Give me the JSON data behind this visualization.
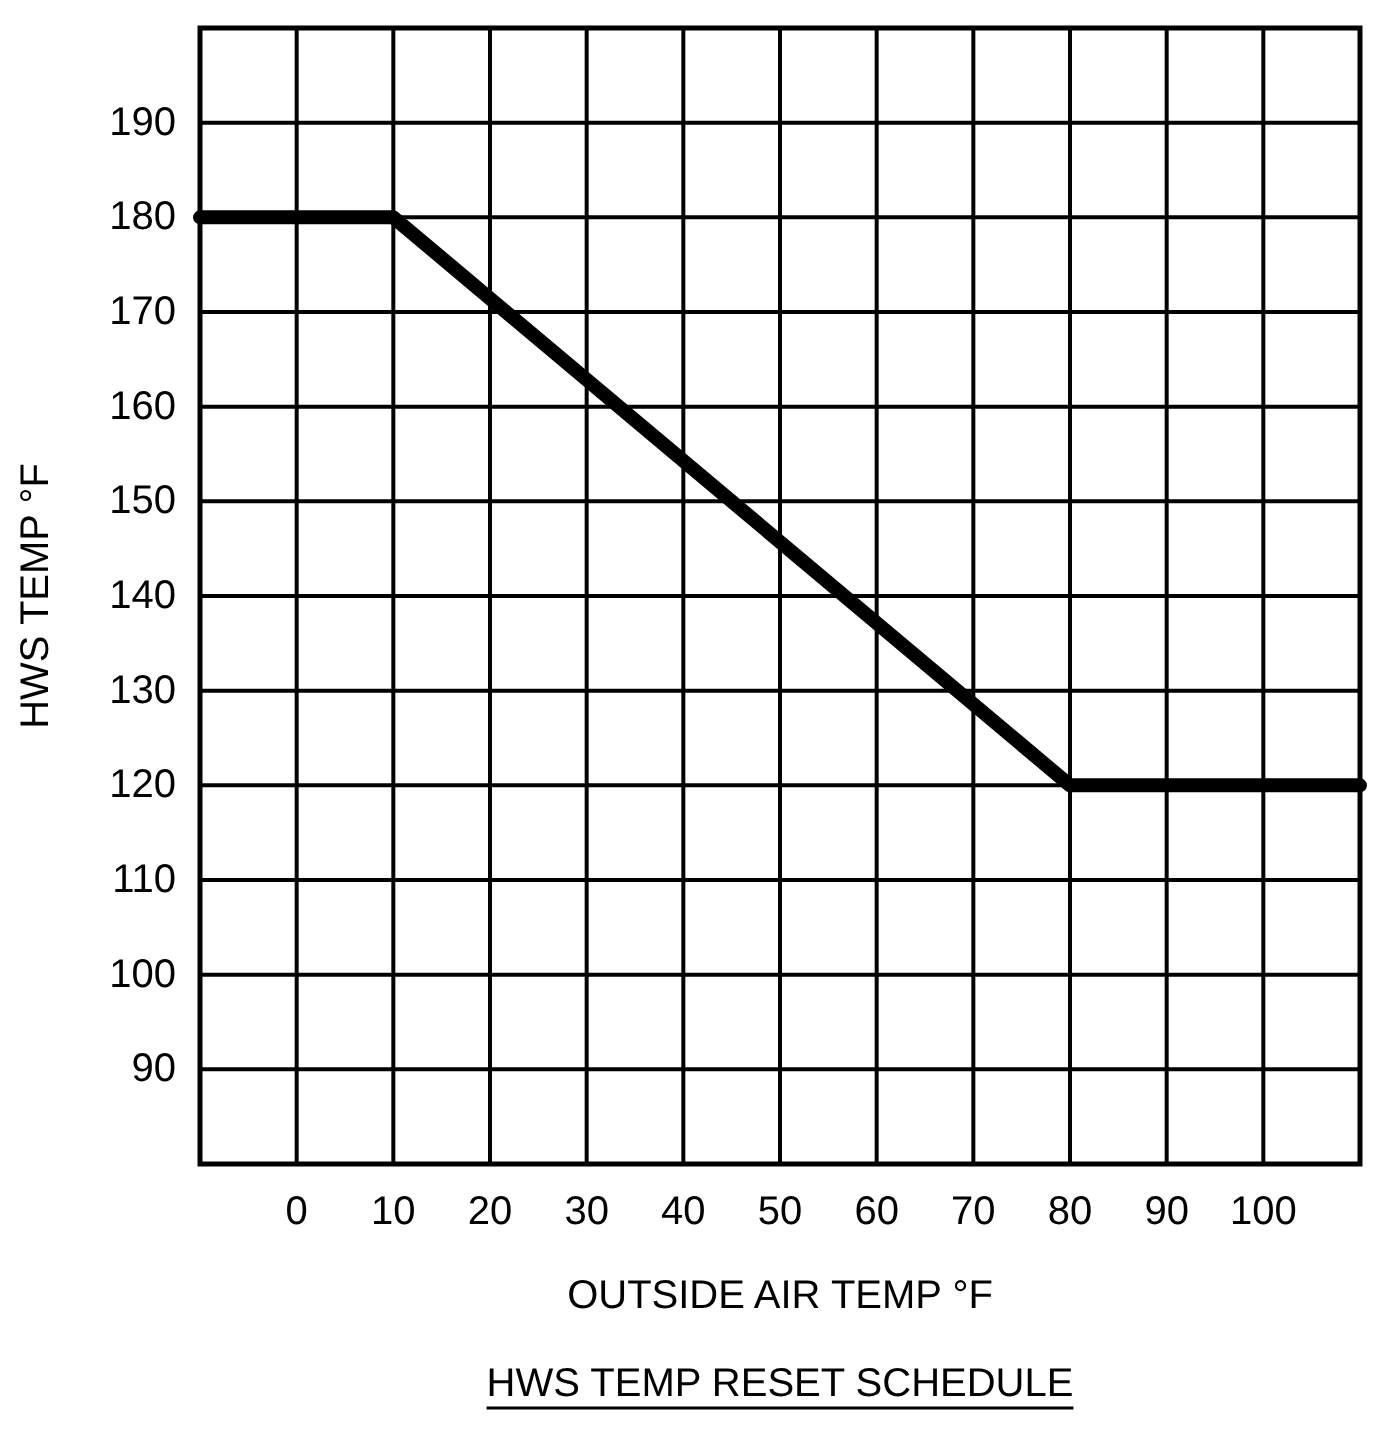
{
  "chart_data": {
    "type": "line",
    "title": "HWS TEMP RESET SCHEDULE",
    "xlabel": "OUTSIDE AIR TEMP °F",
    "ylabel": "HWS TEMP °F",
    "x": [
      -10,
      10,
      80,
      110
    ],
    "series": [
      {
        "color": "#000000",
        "values": [
          180,
          180,
          120,
          120
        ]
      }
    ],
    "xlim": [
      -10,
      110
    ],
    "xticks": [
      0,
      10,
      20,
      30,
      40,
      50,
      60,
      70,
      80,
      90,
      100
    ],
    "ylim": [
      80,
      200
    ],
    "yticks": [
      90,
      100,
      110,
      120,
      130,
      140,
      150,
      160,
      170,
      180,
      190
    ],
    "grid": true,
    "marker": "none",
    "line_style": "solid"
  }
}
